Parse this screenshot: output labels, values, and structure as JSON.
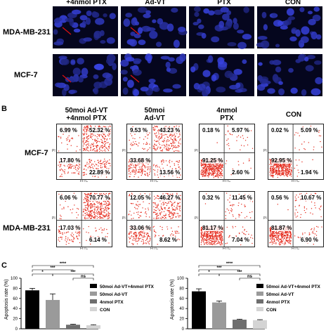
{
  "micro": {
    "col_headers": [
      "+4nmol PTX",
      "Ad-VT",
      "PTX",
      "CON"
    ],
    "rows": [
      "MDA-MB-231",
      "MCF-7"
    ]
  },
  "facs": {
    "panel_label": "B",
    "col_titles": [
      [
        "50moi Ad-VT",
        "+4nmol PTX"
      ],
      [
        "50moi",
        "Ad-VT"
      ],
      [
        "4nmol",
        "PTX"
      ],
      [
        "CON",
        ""
      ]
    ],
    "rows": [
      {
        "label": "MCF-7",
        "panels": [
          {
            "ul": "6.99 %",
            "ur": "52.32 %",
            "ll": "17.80 %",
            "lr": "22.89 %"
          },
          {
            "ul": "9.53 %",
            "ur": "43.23 %",
            "ll": "33.68 %",
            "lr": "13.56 %"
          },
          {
            "ul": "0.18 %",
            "ur": "5.97 %",
            "ll": "91.25 %",
            "lr": "2.60 %"
          },
          {
            "ul": "0.02 %",
            "ur": "5.09 %",
            "ll": "92.95 %",
            "lr": "1.94 %"
          }
        ]
      },
      {
        "label": "MDA-MB-231",
        "panels": [
          {
            "ul": "6.06 %",
            "ur": "70.77 %",
            "ll": "17.03 %",
            "lr": "6.14 %"
          },
          {
            "ul": "12.05 %",
            "ur": "46.27 %",
            "ll": "33.06 %",
            "lr": "8.62 %"
          },
          {
            "ul": "0.32 %",
            "ur": "11.45 %",
            "ll": "81.17 %",
            "lr": "7.04 %"
          },
          {
            "ul": "0.56 %",
            "ur": "10.67 %",
            "ll": "81.87 %",
            "lr": "6.90 %"
          }
        ]
      }
    ],
    "x_axis": "FITC",
    "y_axis": "PI"
  },
  "charts_section": {
    "panel_label": "C",
    "ylabel": "Apoptosis rate (%)",
    "ticks": [
      "100",
      "80",
      "60",
      "40",
      "20",
      "0"
    ],
    "sig_labels": [
      "****",
      "***",
      "*",
      "***",
      "ns"
    ]
  },
  "chart_data": [
    {
      "type": "bar",
      "categories": [
        "50moi Ad-VT+4nmol PTX",
        "50moi Ad-VT",
        "4nmol PTX",
        "CON"
      ],
      "values": [
        76,
        57,
        8,
        7
      ],
      "errors": [
        4,
        12,
        1,
        1
      ],
      "colors": [
        "#000000",
        "#9a9a9a",
        "#6e6e6e",
        "#d4d4d4"
      ],
      "ylabel": "Apoptosis rate (%)",
      "ylim": [
        0,
        100
      ]
    },
    {
      "type": "bar",
      "categories": [
        "50moi Ad-VT+4nmol PTX",
        "50moi Ad-VT",
        "4nmol PTX",
        "CON"
      ],
      "values": [
        74,
        52,
        18,
        17
      ],
      "errors": [
        5,
        3,
        1,
        1
      ],
      "colors": [
        "#000000",
        "#9a9a9a",
        "#6e6e6e",
        "#d4d4d4"
      ],
      "ylabel": "Apoptosis rate (%)",
      "ylim": [
        0,
        100
      ]
    }
  ]
}
